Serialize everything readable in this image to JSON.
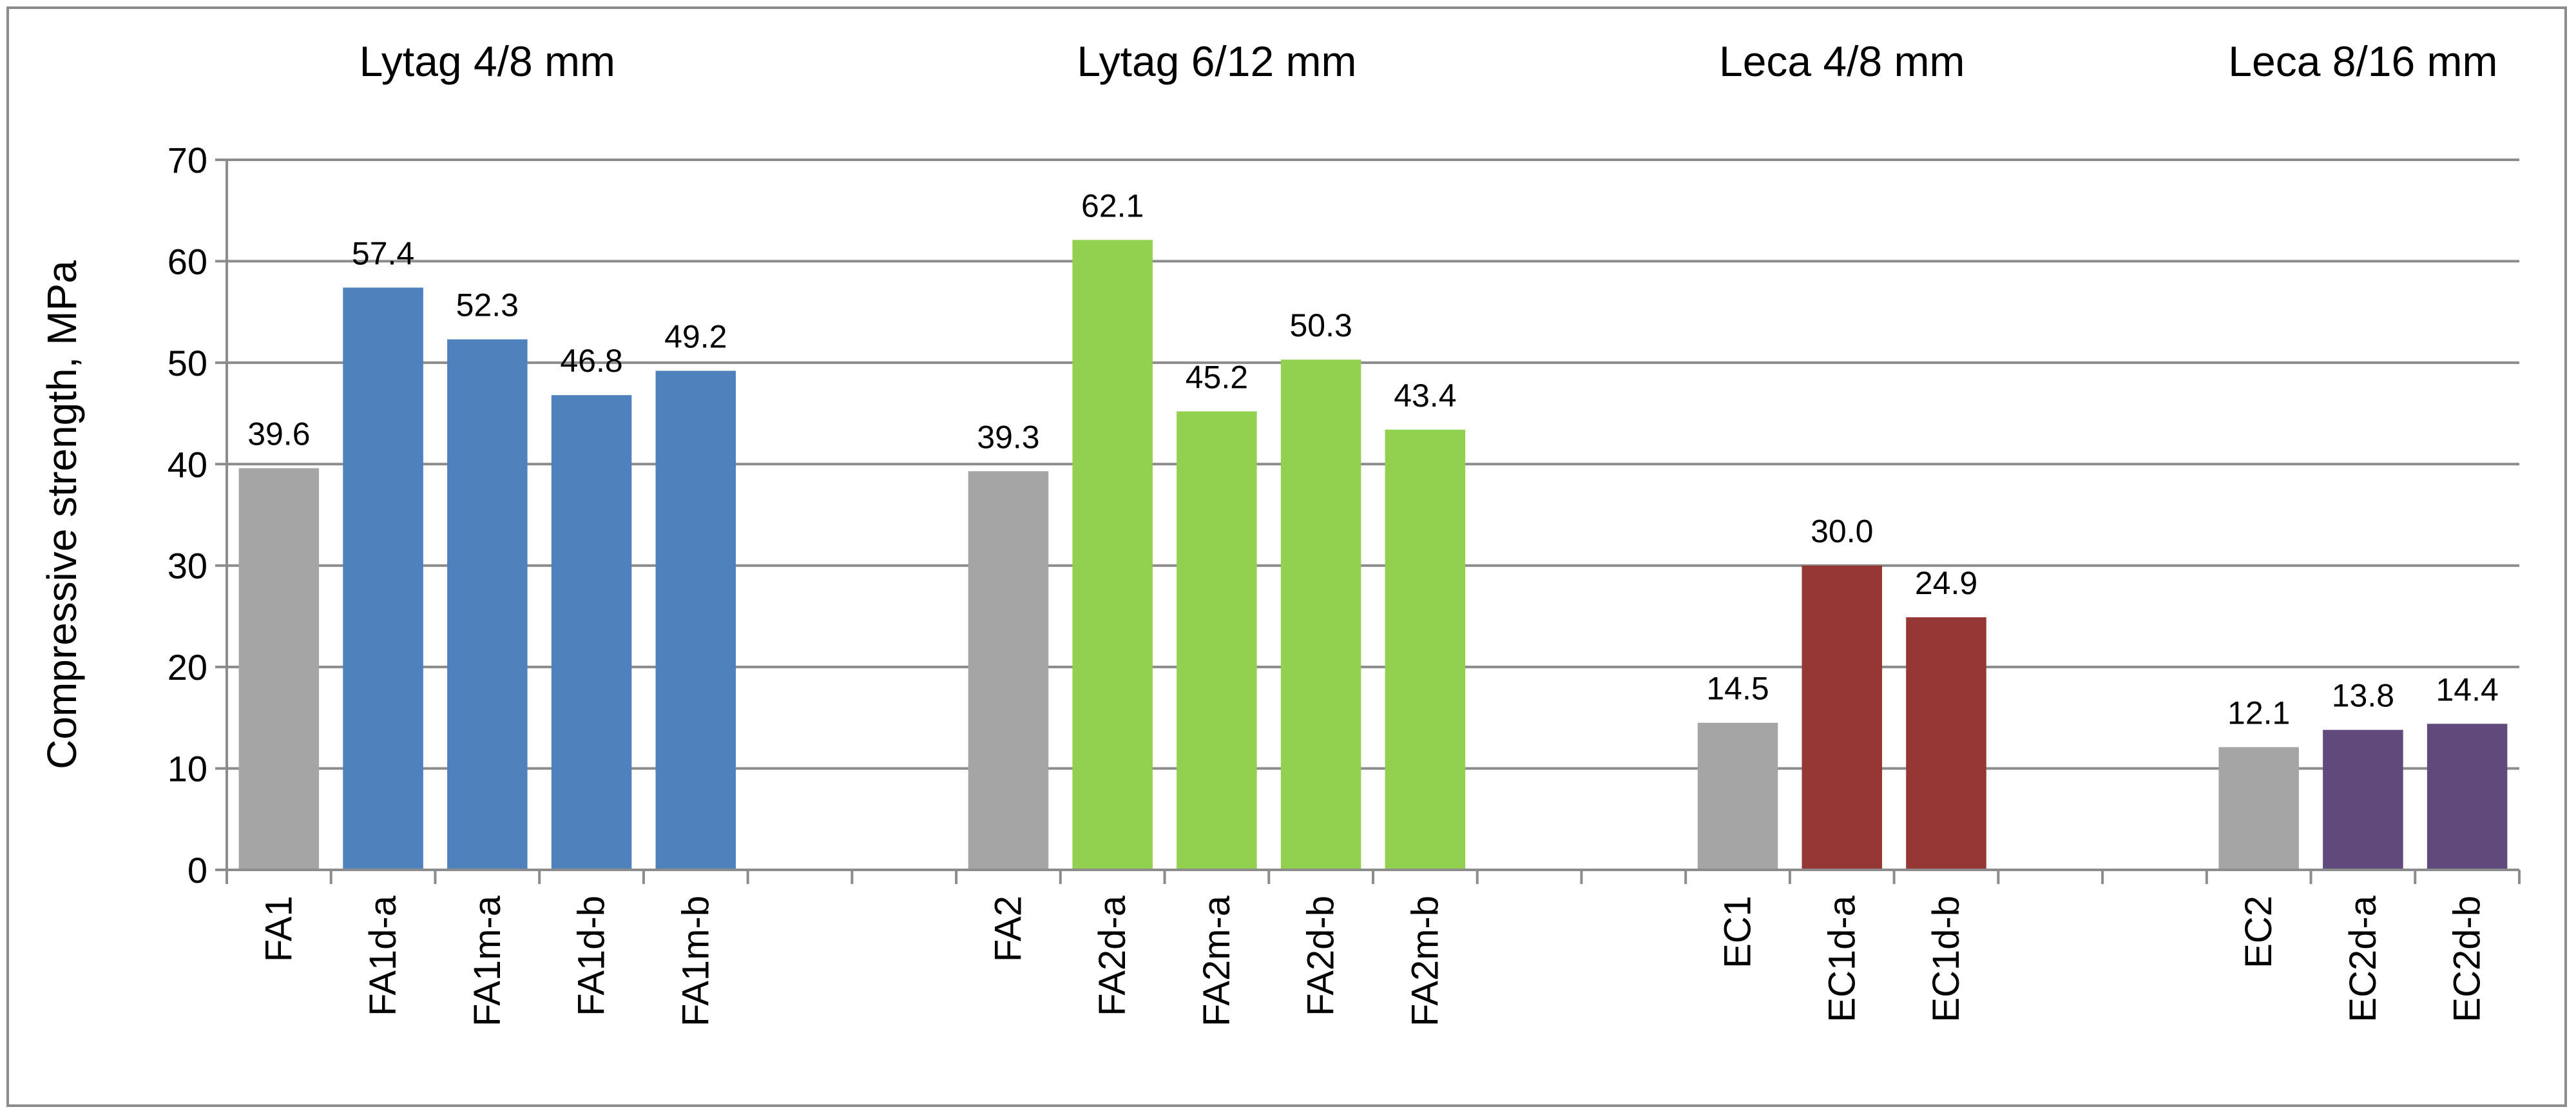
{
  "chart_data": {
    "type": "bar",
    "title": "",
    "xlabel": "",
    "ylabel": "Compressive strength,  MPa",
    "ylim": [
      0,
      70
    ],
    "yticks": [
      0,
      10,
      20,
      30,
      40,
      50,
      60,
      70
    ],
    "grid": true,
    "legend": "none",
    "categories": [
      "FA1",
      "FA1d-a",
      "FA1m-a",
      "FA1d-b",
      "FA1m-b",
      "",
      "",
      "FA2",
      "FA2d-a",
      "FA2m-a",
      "FA2d-b",
      "FA2m-b",
      "",
      "",
      "EC1",
      "EC1d-a",
      "EC1d-b",
      "",
      "",
      "EC2",
      "EC2d-a",
      "EC2d-b"
    ],
    "values": [
      39.6,
      57.4,
      52.3,
      46.8,
      49.2,
      null,
      null,
      39.3,
      62.1,
      45.2,
      50.3,
      43.4,
      null,
      null,
      14.5,
      30.0,
      24.9,
      null,
      null,
      12.1,
      13.8,
      14.4
    ],
    "data_labels": [
      "39.6",
      "57.4",
      "52.3",
      "46.8",
      "49.2",
      "",
      "",
      "39.3",
      "62.1",
      "45.2",
      "50.3",
      "43.4",
      "",
      "",
      "14.5",
      "30.0",
      "24.9",
      "",
      "",
      "12.1",
      "13.8",
      "14.4"
    ],
    "bar_colors": [
      "#a5a5a5",
      "#4f81bd",
      "#4f81bd",
      "#4f81bd",
      "#4f81bd",
      "",
      "",
      "#a5a5a5",
      "#92d050",
      "#92d050",
      "#92d050",
      "#92d050",
      "",
      "",
      "#a5a5a5",
      "#953735",
      "#953735",
      "",
      "",
      "#a5a5a5",
      "#604a7b",
      "#604a7b"
    ],
    "groups": [
      {
        "label": "Lytag 4/8 mm",
        "first": 0,
        "last": 4
      },
      {
        "label": "Lytag 6/12 mm",
        "first": 7,
        "last": 11
      },
      {
        "label": "Leca 4/8  mm",
        "first": 14,
        "last": 16
      },
      {
        "label": "Leca 8/16 mm",
        "first": 19,
        "last": 21
      }
    ]
  }
}
